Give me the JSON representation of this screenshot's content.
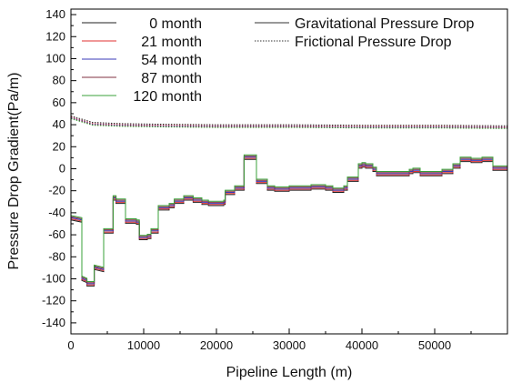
{
  "chart_data": {
    "type": "line",
    "xlabel": "Pipeline Length (m)",
    "ylabel": "Pressure Drop Gradient(Pa/m)",
    "xlim": [
      0,
      60000
    ],
    "ylim": [
      -150,
      145
    ],
    "xticks": [
      0,
      10000,
      20000,
      30000,
      40000,
      50000
    ],
    "xtick_labels": [
      "0",
      "10000",
      "20000",
      "30000",
      "40000",
      "50000"
    ],
    "yticks": [
      140,
      120,
      100,
      80,
      60,
      40,
      20,
      0,
      -20,
      -40,
      -60,
      -80,
      -100,
      -120,
      -140
    ],
    "ytick_labels": [
      "140",
      "120",
      "100",
      "80",
      "60",
      "40",
      "20",
      "0",
      "-20",
      "-40",
      "-60",
      "-80",
      "-100",
      "-120",
      "-140"
    ],
    "grid": false,
    "legend_position": "top",
    "legend": {
      "month_labels": [
        "0 month",
        "21 month",
        "54 month",
        "87 month",
        "120 month"
      ],
      "type_labels": [
        "Gravitational Pressure Drop",
        "Frictional Pressure Drop"
      ]
    },
    "gravitational_base": {
      "x": [
        0,
        1500,
        1500,
        2200,
        2200,
        3200,
        3200,
        4500,
        4500,
        5800,
        5800,
        6200,
        6200,
        7500,
        7500,
        9000,
        9000,
        9400,
        9400,
        10500,
        10500,
        11000,
        11000,
        12000,
        12000,
        13500,
        13500,
        14200,
        14200,
        15500,
        15500,
        16800,
        16800,
        18000,
        18000,
        18900,
        18900,
        21000,
        21000,
        21200,
        21200,
        22500,
        22500,
        23800,
        23800,
        25500,
        25500,
        27000,
        27000,
        28000,
        28000,
        30000,
        30000,
        33000,
        33000,
        35000,
        35000,
        36000,
        36000,
        37500,
        37500,
        38000,
        38000,
        39500,
        39500,
        40000,
        40000,
        40500,
        40500,
        41500,
        41500,
        42000,
        42000,
        43500,
        43500,
        46500,
        46500,
        47000,
        47000,
        48000,
        48000,
        49000,
        49000,
        51000,
        51000,
        52500,
        52500,
        53500,
        53500,
        55000,
        55000,
        56500,
        56500,
        57000,
        57000,
        58000,
        58000,
        60000
      ],
      "y": [
        -45,
        -47,
        -100,
        -102,
        -105,
        -105,
        -90,
        -92,
        -57,
        -57,
        -27,
        -27,
        -30,
        -30,
        -48,
        -48,
        -49,
        -49,
        -63,
        -63,
        -62,
        -62,
        -57,
        -57,
        -36,
        -36,
        -34,
        -34,
        -30,
        -30,
        -27,
        -27,
        -29,
        -29,
        -31,
        -31,
        -32,
        -32,
        -31,
        -31,
        -22,
        -22,
        -18,
        -18,
        10,
        10,
        -12,
        -12,
        -18,
        -18,
        -19,
        -19,
        -18,
        -18,
        -17,
        -17,
        -18,
        -18,
        -20,
        -20,
        -18,
        -18,
        -10,
        -10,
        2,
        2,
        3,
        3,
        2,
        2,
        -1,
        -1,
        -5,
        -5,
        -5,
        -5,
        -3,
        -3,
        -2,
        -2,
        -5,
        -5,
        -5,
        -5,
        -3,
        -3,
        2,
        2,
        8,
        8,
        7,
        7,
        8,
        8,
        8,
        8,
        0,
        0
      ]
    },
    "frictional_base": {
      "x": [
        0,
        3000,
        7000,
        12000,
        20000,
        30000,
        40000,
        50000,
        60000
      ],
      "y": [
        46,
        40,
        39,
        38.5,
        38,
        38,
        37.5,
        37.5,
        37
      ]
    },
    "series": [
      {
        "name": "0 month",
        "color": "#202020",
        "grav_offset": -1.5,
        "fric_offset": 2
      },
      {
        "name": "21 month",
        "color": "#e03030",
        "grav_offset": -0.5,
        "fric_offset": 1
      },
      {
        "name": "54 month",
        "color": "#3838b8",
        "grav_offset": 0.5,
        "fric_offset": 0.5
      },
      {
        "name": "87 month",
        "color": "#803040",
        "grav_offset": 1.5,
        "fric_offset": 0
      },
      {
        "name": "120 month",
        "color": "#38a038",
        "grav_offset": 2.5,
        "fric_offset": -0.5
      }
    ]
  }
}
